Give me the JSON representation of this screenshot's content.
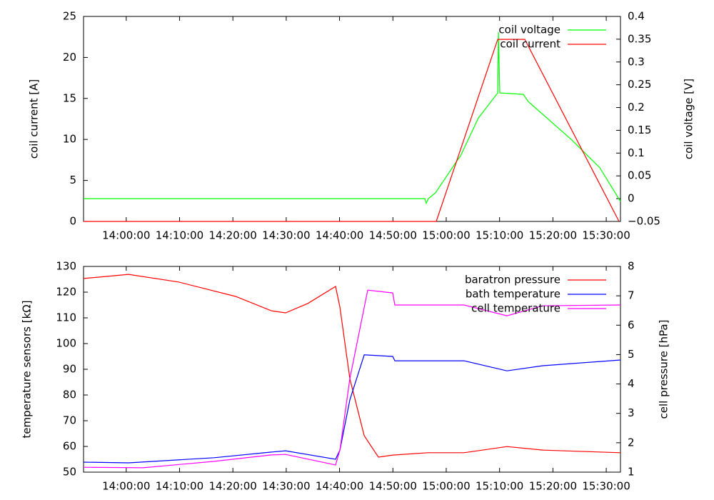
{
  "chart_data": [
    {
      "type": "line",
      "legend": "top-right",
      "ylabel": "coil current [A]",
      "y2label": "coil voltage [V]",
      "xlim": [
        49920,
        55960
      ],
      "xticks": [
        {
          "value": 50400,
          "label": "14:00:00"
        },
        {
          "value": 51000,
          "label": "14:10:00"
        },
        {
          "value": 51600,
          "label": "14:20:00"
        },
        {
          "value": 52200,
          "label": "14:30:00"
        },
        {
          "value": 52800,
          "label": "14:40:00"
        },
        {
          "value": 53400,
          "label": "14:50:00"
        },
        {
          "value": 54000,
          "label": "15:00:00"
        },
        {
          "value": 54600,
          "label": "15:10:00"
        },
        {
          "value": 55200,
          "label": "15:20:00"
        },
        {
          "value": 55800,
          "label": "15:30:00"
        }
      ],
      "ylim": [
        0,
        25
      ],
      "yticks": [
        0,
        5,
        10,
        15,
        20,
        25
      ],
      "y2lim": [
        -0.05,
        0.4
      ],
      "y2ticks": [
        {
          "value": -0.05,
          "label": "−0.05"
        },
        0,
        0.05,
        0.1,
        0.15,
        0.2,
        0.25,
        0.3,
        0.35,
        0.4
      ],
      "series": [
        {
          "name": "coil voltage",
          "color": "#00ff00",
          "axis": "y2",
          "x": [
            49920,
            53759,
            53775,
            53799,
            53880,
            54121,
            54161,
            54362,
            54579,
            54587,
            54603,
            54868,
            54924,
            55406,
            55727,
            55960
          ],
          "values": [
            0,
            0,
            -0.01,
            0,
            0.013,
            0.083,
            0.094,
            0.177,
            0.232,
            0.365,
            0.232,
            0.229,
            0.213,
            0.13,
            0.068,
            -0.006
          ]
        },
        {
          "name": "coil current",
          "color": "#ff0000",
          "axis": "y",
          "x": [
            49920,
            53888,
            54579,
            54884,
            55944
          ],
          "values": [
            0,
            0,
            22.2,
            22.2,
            0
          ]
        }
      ]
    },
    {
      "type": "line",
      "legend": "top-right",
      "ylabel": "temperature sensors [kΩ]",
      "y2label": "cell pressure [hPa]",
      "xlim": [
        49920,
        55960
      ],
      "xticks": [
        {
          "value": 50400,
          "label": "14:00:00"
        },
        {
          "value": 51000,
          "label": "14:10:00"
        },
        {
          "value": 51600,
          "label": "14:20:00"
        },
        {
          "value": 52200,
          "label": "14:30:00"
        },
        {
          "value": 52800,
          "label": "14:40:00"
        },
        {
          "value": 53400,
          "label": "14:50:00"
        },
        {
          "value": 54000,
          "label": "15:00:00"
        },
        {
          "value": 54600,
          "label": "15:10:00"
        },
        {
          "value": 55200,
          "label": "15:20:00"
        },
        {
          "value": 55800,
          "label": "15:30:00"
        }
      ],
      "ylim": [
        50,
        130
      ],
      "yticks": [
        50,
        60,
        70,
        80,
        90,
        100,
        110,
        120,
        130
      ],
      "y2lim": [
        1,
        8
      ],
      "y2ticks": [
        1,
        2,
        3,
        4,
        5,
        6,
        7,
        8
      ],
      "series": [
        {
          "name": "baratron pressure",
          "color": "#ff0000",
          "axis": "y2",
          "x": [
            49920,
            50426,
            50988,
            51631,
            52032,
            52193,
            52444,
            52755,
            52804,
            52916,
            53077,
            53237,
            53398,
            53799,
            54201,
            54683,
            55085,
            55960
          ],
          "values": [
            7.59,
            7.73,
            7.47,
            6.98,
            6.49,
            6.42,
            6.74,
            7.32,
            6.61,
            4.18,
            2.24,
            1.51,
            1.58,
            1.66,
            1.66,
            1.87,
            1.75,
            1.66
          ]
        },
        {
          "name": "bath temperature",
          "color": "#0000ff",
          "axis": "y",
          "x": [
            49920,
            50426,
            51390,
            52032,
            52193,
            52755,
            52804,
            52916,
            53077,
            53398,
            53422,
            54201,
            54683,
            55085,
            55960
          ],
          "values": [
            53.9,
            53.6,
            55.6,
            57.8,
            58.3,
            55.0,
            58.6,
            78.1,
            95.6,
            95.0,
            93.3,
            93.3,
            89.4,
            91.4,
            93.6
          ]
        },
        {
          "name": "cell temperature",
          "color": "#ff00ff",
          "axis": "y",
          "x": [
            49920,
            50587,
            51390,
            52032,
            52193,
            52755,
            52804,
            52916,
            53117,
            53398,
            53422,
            54201,
            54683,
            55085,
            55960
          ],
          "values": [
            51.9,
            51.7,
            54.2,
            56.7,
            56.9,
            52.8,
            58.6,
            86.4,
            120.8,
            119.7,
            115.0,
            115.0,
            110.8,
            114.7,
            115.0
          ]
        }
      ]
    }
  ]
}
